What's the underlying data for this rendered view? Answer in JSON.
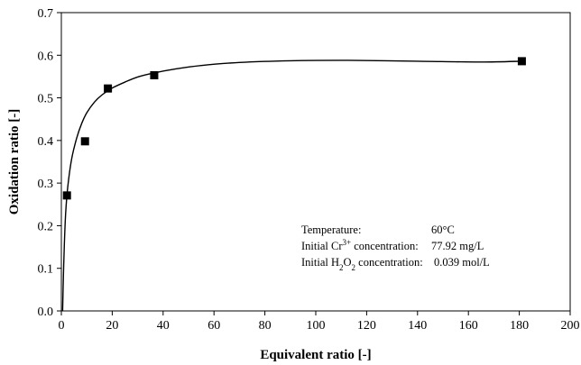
{
  "chart_data": {
    "type": "scatter",
    "xlabel": "Equivalent ratio [-]",
    "ylabel": "Oxidation ratio [-]",
    "xlim": [
      0,
      200
    ],
    "ylim": [
      0,
      0.7
    ],
    "x_ticks": [
      "0",
      "20",
      "40",
      "60",
      "80",
      "100",
      "120",
      "140",
      "160",
      "180",
      "200"
    ],
    "y_ticks": [
      "0.0",
      "0.1",
      "0.2",
      "0.3",
      "0.4",
      "0.5",
      "0.6",
      "0.7"
    ],
    "grid": false,
    "legend": "none",
    "marker": "filled square",
    "series": [
      {
        "points": [
          {
            "x": 2.2,
            "y": 0.271
          },
          {
            "x": 9.3,
            "y": 0.398
          },
          {
            "x": 18.3,
            "y": 0.522
          },
          {
            "x": 36.5,
            "y": 0.553
          },
          {
            "x": 181,
            "y": 0.586
          }
        ]
      }
    ],
    "fit_curve": {
      "points": [
        {
          "x": 0.5,
          "y": 0.0
        },
        {
          "x": 0.8,
          "y": 0.08
        },
        {
          "x": 1.2,
          "y": 0.16
        },
        {
          "x": 1.7,
          "y": 0.23
        },
        {
          "x": 2.5,
          "y": 0.29
        },
        {
          "x": 4,
          "y": 0.355
        },
        {
          "x": 6,
          "y": 0.405
        },
        {
          "x": 8,
          "y": 0.44
        },
        {
          "x": 10,
          "y": 0.465
        },
        {
          "x": 13,
          "y": 0.49
        },
        {
          "x": 16,
          "y": 0.507
        },
        {
          "x": 20,
          "y": 0.523
        },
        {
          "x": 25,
          "y": 0.537
        },
        {
          "x": 30,
          "y": 0.549
        },
        {
          "x": 36,
          "y": 0.558
        },
        {
          "x": 45,
          "y": 0.568
        },
        {
          "x": 55,
          "y": 0.576
        },
        {
          "x": 70,
          "y": 0.583
        },
        {
          "x": 90,
          "y": 0.587
        },
        {
          "x": 113,
          "y": 0.588
        },
        {
          "x": 140,
          "y": 0.586
        },
        {
          "x": 165,
          "y": 0.584
        },
        {
          "x": 181,
          "y": 0.586
        }
      ]
    },
    "annotations": [
      {
        "label": "Temperature:",
        "value": "60°C"
      },
      {
        "label_parts": [
          "Initial Cr",
          "3+",
          " concentration:"
        ],
        "value": "77.92 mg/L"
      },
      {
        "label_parts": [
          "Initial H",
          "2",
          "O",
          "2",
          " concentration:"
        ],
        "value": "0.039 mol/L"
      }
    ]
  }
}
